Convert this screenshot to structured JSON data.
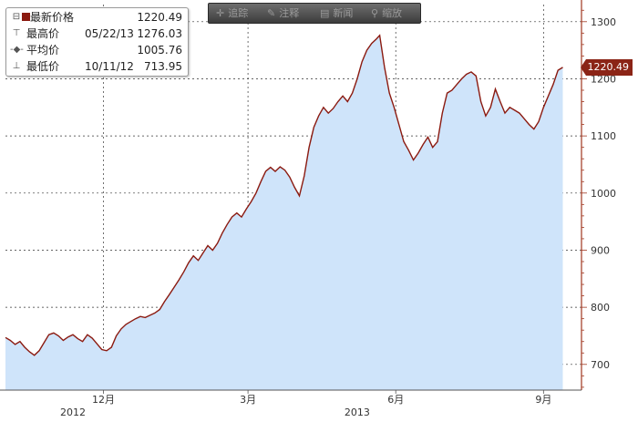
{
  "legend": {
    "last": {
      "label": "最新价格",
      "date": "",
      "value": "1220.49"
    },
    "high": {
      "label": "最高价",
      "date": "05/22/13",
      "value": "1276.03"
    },
    "average": {
      "label": "平均价",
      "date": "",
      "value": "1005.76"
    },
    "low": {
      "label": "最低价",
      "date": "10/11/12",
      "value": "713.95"
    }
  },
  "toolbar": {
    "zoom_label": "追踪",
    "annotate_label": "注释",
    "news_label": "新闻",
    "search_label": "缩放",
    "icons": [
      "crosshair-icon",
      "pencil-icon",
      "news-icon",
      "magnifier-icon"
    ]
  },
  "price_tag": "1220.49",
  "colors": {
    "line": "#8b1a10",
    "fill": "#cfe4fa",
    "tag": "#8b2416",
    "axis": "#a0361f",
    "grid": "#333333"
  },
  "chart_data": {
    "type": "area",
    "title": "",
    "xlabel": "",
    "ylabel": "",
    "ylim": [
      655,
      1330
    ],
    "xlim": [
      "2012-10-01",
      "2013-09-15"
    ],
    "grid": true,
    "yticks": [
      700,
      800,
      900,
      1000,
      1100,
      1200,
      1300
    ],
    "xtick_labels": [
      {
        "date": "2012-12-01",
        "label": "12月"
      },
      {
        "date": "2013-03-01",
        "label": "3月"
      },
      {
        "date": "2013-06-01",
        "label": "6月"
      },
      {
        "date": "2013-09-01",
        "label": "9月"
      }
    ],
    "year_labels": [
      {
        "date": "2012-11-12",
        "label": "2012"
      },
      {
        "date": "2013-05-08",
        "label": "2013"
      }
    ],
    "series": [
      {
        "values": [
          [
            "2012-10-01",
            747
          ],
          [
            "2012-10-04",
            742
          ],
          [
            "2012-10-07",
            735
          ],
          [
            "2012-10-10",
            740
          ],
          [
            "2012-10-13",
            730
          ],
          [
            "2012-10-16",
            722
          ],
          [
            "2012-10-19",
            716
          ],
          [
            "2012-10-22",
            724
          ],
          [
            "2012-10-25",
            738
          ],
          [
            "2012-10-28",
            752
          ],
          [
            "2012-10-31",
            755
          ],
          [
            "2012-11-03",
            750
          ],
          [
            "2012-11-06",
            742
          ],
          [
            "2012-11-09",
            748
          ],
          [
            "2012-11-12",
            752
          ],
          [
            "2012-11-15",
            745
          ],
          [
            "2012-11-18",
            740
          ],
          [
            "2012-11-21",
            752
          ],
          [
            "2012-11-24",
            746
          ],
          [
            "2012-11-27",
            736
          ],
          [
            "2012-11-30",
            726
          ],
          [
            "2012-12-03",
            724
          ],
          [
            "2012-12-06",
            730
          ],
          [
            "2012-12-09",
            750
          ],
          [
            "2012-12-12",
            762
          ],
          [
            "2012-12-15",
            770
          ],
          [
            "2012-12-18",
            775
          ],
          [
            "2012-12-21",
            780
          ],
          [
            "2012-12-24",
            784
          ],
          [
            "2012-12-27",
            782
          ],
          [
            "2012-12-30",
            786
          ],
          [
            "2013-01-02",
            790
          ],
          [
            "2013-01-05",
            796
          ],
          [
            "2013-01-08",
            810
          ],
          [
            "2013-01-11",
            822
          ],
          [
            "2013-01-14",
            835
          ],
          [
            "2013-01-17",
            848
          ],
          [
            "2013-01-20",
            862
          ],
          [
            "2013-01-23",
            878
          ],
          [
            "2013-01-26",
            890
          ],
          [
            "2013-01-29",
            882
          ],
          [
            "2013-02-01",
            895
          ],
          [
            "2013-02-04",
            908
          ],
          [
            "2013-02-07",
            900
          ],
          [
            "2013-02-10",
            912
          ],
          [
            "2013-02-13",
            930
          ],
          [
            "2013-02-16",
            945
          ],
          [
            "2013-02-19",
            958
          ],
          [
            "2013-02-22",
            965
          ],
          [
            "2013-02-25",
            958
          ],
          [
            "2013-02-28",
            972
          ],
          [
            "2013-03-03",
            985
          ],
          [
            "2013-03-06",
            1000
          ],
          [
            "2013-03-09",
            1020
          ],
          [
            "2013-03-12",
            1038
          ],
          [
            "2013-03-15",
            1045
          ],
          [
            "2013-03-18",
            1038
          ],
          [
            "2013-03-21",
            1046
          ],
          [
            "2013-03-24",
            1040
          ],
          [
            "2013-03-27",
            1028
          ],
          [
            "2013-03-30",
            1010
          ],
          [
            "2013-04-02",
            995
          ],
          [
            "2013-04-05",
            1030
          ],
          [
            "2013-04-08",
            1080
          ],
          [
            "2013-04-11",
            1115
          ],
          [
            "2013-04-14",
            1135
          ],
          [
            "2013-04-17",
            1150
          ],
          [
            "2013-04-20",
            1140
          ],
          [
            "2013-04-23",
            1148
          ],
          [
            "2013-04-26",
            1160
          ],
          [
            "2013-04-29",
            1170
          ],
          [
            "2013-05-02",
            1160
          ],
          [
            "2013-05-05",
            1175
          ],
          [
            "2013-05-08",
            1200
          ],
          [
            "2013-05-11",
            1230
          ],
          [
            "2013-05-14",
            1250
          ],
          [
            "2013-05-17",
            1262
          ],
          [
            "2013-05-20",
            1270
          ],
          [
            "2013-05-22",
            1276
          ],
          [
            "2013-05-25",
            1220
          ],
          [
            "2013-05-28",
            1175
          ],
          [
            "2013-05-31",
            1150
          ],
          [
            "2013-06-03",
            1120
          ],
          [
            "2013-06-06",
            1090
          ],
          [
            "2013-06-09",
            1075
          ],
          [
            "2013-06-12",
            1058
          ],
          [
            "2013-06-15",
            1070
          ],
          [
            "2013-06-18",
            1085
          ],
          [
            "2013-06-21",
            1098
          ],
          [
            "2013-06-24",
            1080
          ],
          [
            "2013-06-27",
            1090
          ],
          [
            "2013-06-30",
            1140
          ],
          [
            "2013-07-03",
            1175
          ],
          [
            "2013-07-06",
            1180
          ],
          [
            "2013-07-09",
            1190
          ],
          [
            "2013-07-12",
            1200
          ],
          [
            "2013-07-15",
            1208
          ],
          [
            "2013-07-18",
            1212
          ],
          [
            "2013-07-21",
            1205
          ],
          [
            "2013-07-24",
            1160
          ],
          [
            "2013-07-27",
            1135
          ],
          [
            "2013-07-30",
            1150
          ],
          [
            "2013-08-02",
            1182
          ],
          [
            "2013-08-05",
            1160
          ],
          [
            "2013-08-08",
            1140
          ],
          [
            "2013-08-11",
            1150
          ],
          [
            "2013-08-14",
            1145
          ],
          [
            "2013-08-17",
            1140
          ],
          [
            "2013-08-20",
            1130
          ],
          [
            "2013-08-23",
            1120
          ],
          [
            "2013-08-26",
            1112
          ],
          [
            "2013-08-29",
            1125
          ],
          [
            "2013-09-01",
            1150
          ],
          [
            "2013-09-04",
            1170
          ],
          [
            "2013-09-07",
            1190
          ],
          [
            "2013-09-10",
            1215
          ],
          [
            "2013-09-13",
            1220
          ]
        ]
      }
    ]
  }
}
